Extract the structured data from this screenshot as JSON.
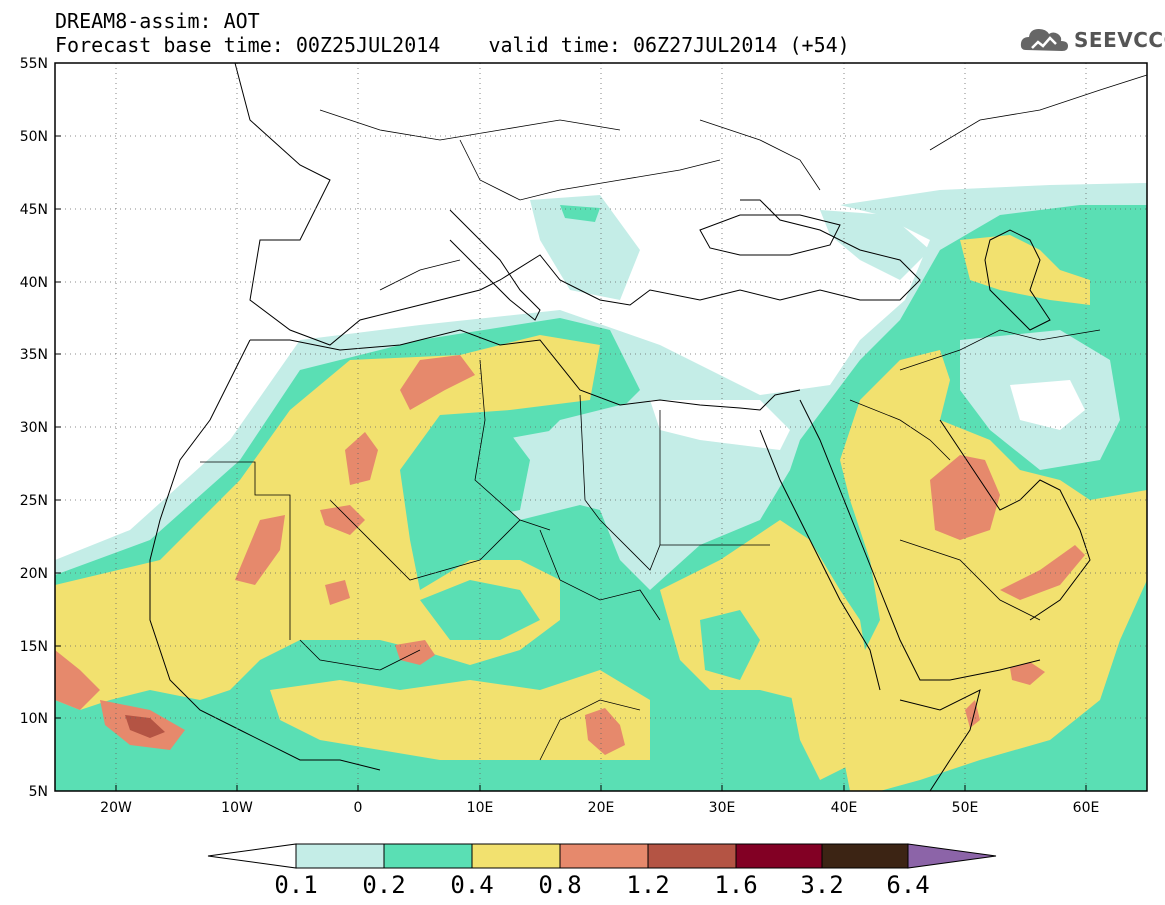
{
  "header": {
    "title_line1": "DREAM8-assim: AOT",
    "title_line2": "Forecast base time: 00Z25JUL2014    valid time: 06Z27JUL2014 (+54)",
    "logo_text": "SEEVCCC"
  },
  "map": {
    "lon_range": [
      -25,
      65
    ],
    "lat_range": [
      5,
      55
    ],
    "lat_labels": [
      "55N",
      "50N",
      "45N",
      "40N",
      "35N",
      "30N",
      "25N",
      "20N",
      "15N",
      "10N",
      "5N"
    ],
    "lon_labels": [
      "20W",
      "10W",
      "0",
      "10E",
      "20E",
      "30E",
      "40E",
      "50E",
      "60E"
    ],
    "grid": "dotted"
  },
  "colorbar": {
    "labels": [
      "0.1",
      "0.2",
      "0.4",
      "0.8",
      "1.2",
      "1.6",
      "3.2",
      "6.4"
    ],
    "colors": [
      "#c4ede7",
      "#5adfb4",
      "#f2e16f",
      "#e6896c",
      "#b45444",
      "#820024",
      "#3c2414",
      "#8c64a8"
    ]
  }
}
